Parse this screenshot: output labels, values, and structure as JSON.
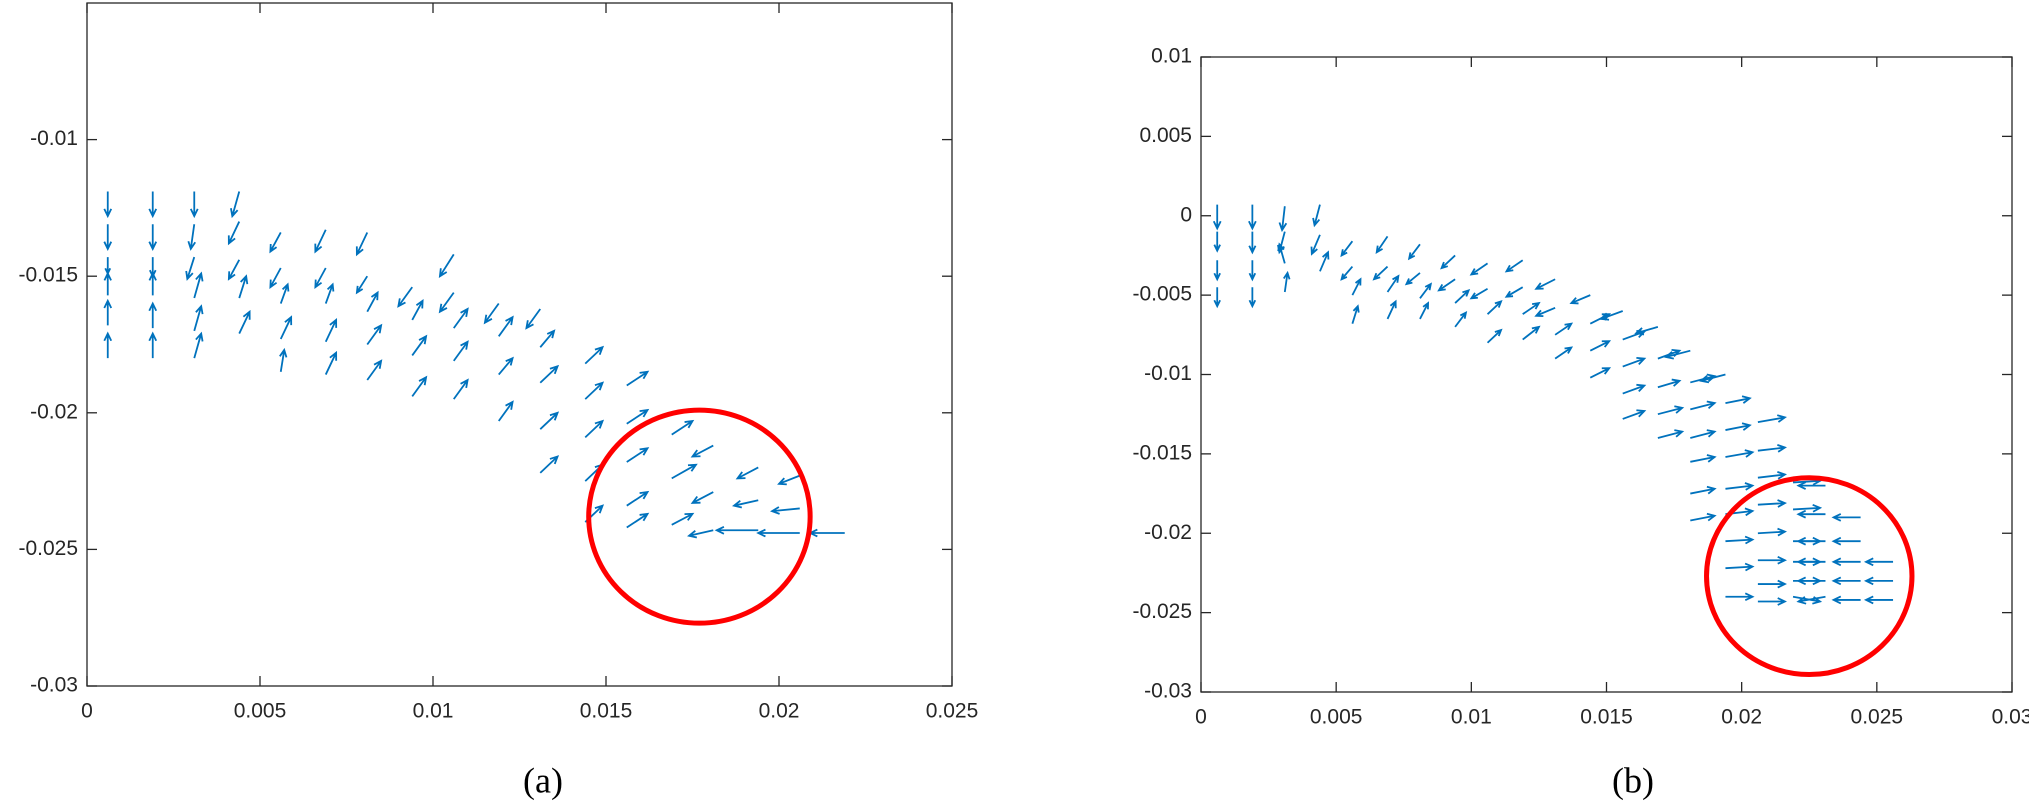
{
  "chart_data": [
    {
      "type": "quiver",
      "label": "(a)",
      "color": "#0072bd",
      "xlim": [
        0,
        0.025
      ],
      "ylim": [
        -0.03,
        -0.005
      ],
      "xticks": [
        0,
        0.005,
        0.01,
        0.015,
        0.02,
        0.025
      ],
      "yticks": [
        -0.03,
        -0.025,
        -0.02,
        -0.015,
        -0.01
      ],
      "circle": {
        "center": [
          0.0177,
          -0.0238
        ],
        "radius": [
          0.0032,
          0.0039
        ],
        "color": "#ff0000"
      },
      "arrows": [
        [
          0.0006,
          -0.0119,
          0,
          -0.0009
        ],
        [
          0.0006,
          -0.0131,
          0,
          -0.0009
        ],
        [
          0.0006,
          -0.0143,
          0,
          -0.0006
        ],
        [
          0.0006,
          -0.0157,
          0,
          0.0008
        ],
        [
          0.0006,
          -0.0168,
          0,
          0.0009
        ],
        [
          0.0006,
          -0.018,
          0,
          0.0009
        ],
        [
          0.0019,
          -0.0119,
          0,
          -0.0009
        ],
        [
          0.0019,
          -0.0131,
          0,
          -0.0009
        ],
        [
          0.0019,
          -0.0143,
          0,
          -0.0007
        ],
        [
          0.0019,
          -0.0157,
          0,
          0.0008
        ],
        [
          0.0019,
          -0.0169,
          0,
          0.0009
        ],
        [
          0.0019,
          -0.018,
          0,
          0.0009
        ],
        [
          0.0031,
          -0.0119,
          0,
          -0.0009
        ],
        [
          0.0031,
          -0.0131,
          -0.0001,
          -0.0009
        ],
        [
          0.0031,
          -0.0143,
          -0.0002,
          -0.0008
        ],
        [
          0.0031,
          -0.0158,
          0.0002,
          0.0009
        ],
        [
          0.0031,
          -0.017,
          0.0002,
          0.0009
        ],
        [
          0.0031,
          -0.018,
          0.0002,
          0.0009
        ],
        [
          0.0044,
          -0.0119,
          -0.0002,
          -0.0009
        ],
        [
          0.0044,
          -0.013,
          -0.0003,
          -0.0008
        ],
        [
          0.0044,
          -0.0144,
          -0.0003,
          -0.0007
        ],
        [
          0.0044,
          -0.0158,
          0.0002,
          0.0008
        ],
        [
          0.0044,
          -0.0171,
          0.0003,
          0.0008
        ],
        [
          0.0056,
          -0.0134,
          -0.0003,
          -0.0007
        ],
        [
          0.0056,
          -0.0147,
          -0.0003,
          -0.0007
        ],
        [
          0.0056,
          -0.016,
          0.0002,
          0.0007
        ],
        [
          0.0056,
          -0.0173,
          0.0003,
          0.0008
        ],
        [
          0.0056,
          -0.0185,
          0.0001,
          0.0008
        ],
        [
          0.0069,
          -0.0133,
          -0.0003,
          -0.0008
        ],
        [
          0.0069,
          -0.0147,
          -0.0003,
          -0.0007
        ],
        [
          0.0069,
          -0.016,
          0.0002,
          0.0007
        ],
        [
          0.0069,
          -0.0174,
          0.0003,
          0.0008
        ],
        [
          0.0069,
          -0.0186,
          0.0003,
          0.0008
        ],
        [
          0.0081,
          -0.0134,
          -0.0003,
          -0.0008
        ],
        [
          0.0081,
          -0.015,
          -0.0003,
          -0.0006
        ],
        [
          0.0081,
          -0.0163,
          0.0003,
          0.0007
        ],
        [
          0.0081,
          -0.0175,
          0.0004,
          0.0007
        ],
        [
          0.0081,
          -0.0188,
          0.0004,
          0.0007
        ],
        [
          0.0094,
          -0.0154,
          -0.0004,
          -0.0007
        ],
        [
          0.0094,
          -0.0166,
          0.0003,
          0.0007
        ],
        [
          0.0094,
          -0.0179,
          0.0004,
          0.0007
        ],
        [
          0.0094,
          -0.0194,
          0.0004,
          0.0007
        ],
        [
          0.0106,
          -0.0142,
          -0.0004,
          -0.0008
        ],
        [
          0.0106,
          -0.0156,
          -0.0004,
          -0.0007
        ],
        [
          0.0106,
          -0.0169,
          0.0004,
          0.0007
        ],
        [
          0.0106,
          -0.0181,
          0.0004,
          0.0007
        ],
        [
          0.0106,
          -0.0195,
          0.0004,
          0.0007
        ],
        [
          0.0119,
          -0.016,
          -0.0004,
          -0.0007
        ],
        [
          0.0119,
          -0.0172,
          0.0004,
          0.0007
        ],
        [
          0.0119,
          -0.0186,
          0.0004,
          0.0006
        ],
        [
          0.0119,
          -0.0203,
          0.0004,
          0.0007
        ],
        [
          0.0131,
          -0.0162,
          -0.0004,
          -0.0007
        ],
        [
          0.0131,
          -0.0176,
          0.0004,
          0.0006
        ],
        [
          0.0131,
          -0.0189,
          0.0005,
          0.0006
        ],
        [
          0.0131,
          -0.0206,
          0.0005,
          0.0006
        ],
        [
          0.0131,
          -0.0222,
          0.0005,
          0.0006
        ],
        [
          0.0144,
          -0.0182,
          0.0005,
          0.0006
        ],
        [
          0.0144,
          -0.0195,
          0.0005,
          0.0006
        ],
        [
          0.0144,
          -0.0209,
          0.0005,
          0.0006
        ],
        [
          0.0144,
          -0.0225,
          0.0005,
          0.0006
        ],
        [
          0.0144,
          -0.024,
          0.0005,
          0.0006
        ],
        [
          0.0156,
          -0.019,
          0.0006,
          0.0005
        ],
        [
          0.0156,
          -0.0204,
          0.0006,
          0.0005
        ],
        [
          0.0156,
          -0.0218,
          0.0006,
          0.0005
        ],
        [
          0.0156,
          -0.0234,
          0.0006,
          0.0005
        ],
        [
          0.0156,
          -0.0242,
          0.0006,
          0.0005
        ],
        [
          0.0169,
          -0.0208,
          0.0006,
          0.0005
        ],
        [
          0.0169,
          -0.0224,
          0.0007,
          0.0005
        ],
        [
          0.0169,
          -0.0241,
          0.0006,
          0.0004
        ],
        [
          0.0181,
          -0.0212,
          -0.0006,
          -0.0004
        ],
        [
          0.0181,
          -0.0229,
          -0.0006,
          -0.0004
        ],
        [
          0.0181,
          -0.0243,
          -0.0007,
          -0.0002
        ],
        [
          0.0194,
          -0.022,
          -0.0006,
          -0.0004
        ],
        [
          0.0194,
          -0.0232,
          -0.0007,
          -0.0002
        ],
        [
          0.0194,
          -0.0243,
          -0.0012,
          0
        ],
        [
          0.0206,
          -0.0223,
          -0.0006,
          -0.0003
        ],
        [
          0.0206,
          -0.0235,
          -0.0008,
          -0.0001
        ],
        [
          0.0206,
          -0.0244,
          -0.0012,
          0
        ],
        [
          0.0219,
          -0.0244,
          -0.001,
          0
        ]
      ]
    },
    {
      "type": "quiver",
      "label": "(b)",
      "color": "#0072bd",
      "xlim": [
        0,
        0.03
      ],
      "ylim": [
        -0.03,
        0.01
      ],
      "xticks": [
        0,
        0.005,
        0.01,
        0.015,
        0.02,
        0.025,
        0.03
      ],
      "yticks": [
        -0.03,
        -0.025,
        -0.02,
        -0.015,
        -0.01,
        -0.005,
        0,
        0.005,
        0.01
      ],
      "circle": {
        "center": [
          0.0225,
          -0.0227
        ],
        "radius": [
          0.0038,
          0.0062
        ],
        "color": "#ff0000"
      },
      "arrows": [
        [
          0.0006,
          0.0007,
          0,
          -0.0015
        ],
        [
          0.0006,
          -0.001,
          0,
          -0.0012
        ],
        [
          0.0006,
          -0.0028,
          0,
          -0.0012
        ],
        [
          0.0006,
          -0.0045,
          0,
          -0.0012
        ],
        [
          0.0019,
          0.0007,
          0,
          -0.0015
        ],
        [
          0.0019,
          -0.001,
          0,
          -0.0013
        ],
        [
          0.0019,
          -0.0028,
          0,
          -0.0012
        ],
        [
          0.0019,
          -0.0045,
          0,
          -0.0012
        ],
        [
          0.0031,
          0.0006,
          -0.0001,
          -0.0015
        ],
        [
          0.0031,
          -0.001,
          -0.0002,
          -0.0013
        ],
        [
          0.0031,
          -0.003,
          -0.0002,
          0.0012
        ],
        [
          0.0031,
          -0.0048,
          0.0001,
          0.0012
        ],
        [
          0.0044,
          0.0007,
          -0.0002,
          -0.0013
        ],
        [
          0.0044,
          -0.0012,
          -0.0003,
          -0.0012
        ],
        [
          0.0044,
          -0.0035,
          0.0003,
          0.0012
        ],
        [
          0.0056,
          -0.0016,
          -0.0004,
          -0.0009
        ],
        [
          0.0056,
          -0.0032,
          -0.0004,
          -0.0008
        ],
        [
          0.0056,
          -0.005,
          0.0003,
          0.001
        ],
        [
          0.0056,
          -0.0068,
          0.0002,
          0.0011
        ],
        [
          0.0069,
          -0.0013,
          -0.0004,
          -0.001
        ],
        [
          0.0069,
          -0.0032,
          -0.0005,
          -0.0008
        ],
        [
          0.0069,
          -0.0048,
          0.0004,
          0.001
        ],
        [
          0.0069,
          -0.0065,
          0.0003,
          0.0011
        ],
        [
          0.0081,
          -0.0018,
          -0.0004,
          -0.0009
        ],
        [
          0.0081,
          -0.0036,
          -0.0005,
          -0.0007
        ],
        [
          0.0081,
          -0.0052,
          0.0004,
          0.0009
        ],
        [
          0.0081,
          -0.0065,
          0.0003,
          0.001
        ],
        [
          0.0094,
          -0.0025,
          -0.0005,
          -0.0008
        ],
        [
          0.0094,
          -0.004,
          -0.0006,
          -0.0007
        ],
        [
          0.0094,
          -0.0055,
          0.0005,
          0.0008
        ],
        [
          0.0094,
          -0.007,
          0.0004,
          0.0009
        ],
        [
          0.0106,
          -0.003,
          -0.0006,
          -0.0007
        ],
        [
          0.0106,
          -0.0046,
          -0.0006,
          -0.0006
        ],
        [
          0.0106,
          -0.0062,
          0.0005,
          0.0008
        ],
        [
          0.0106,
          -0.008,
          0.0005,
          0.0008
        ],
        [
          0.0119,
          -0.0028,
          -0.0006,
          -0.0007
        ],
        [
          0.0119,
          -0.0045,
          -0.0006,
          -0.0006
        ],
        [
          0.0119,
          -0.0062,
          0.0006,
          0.0007
        ],
        [
          0.0119,
          -0.0078,
          0.0006,
          0.0008
        ],
        [
          0.0131,
          -0.004,
          -0.0007,
          -0.0006
        ],
        [
          0.0131,
          -0.0058,
          -0.0007,
          -0.0005
        ],
        [
          0.0131,
          -0.0075,
          0.0006,
          0.0007
        ],
        [
          0.0131,
          -0.009,
          0.0006,
          0.0007
        ],
        [
          0.0144,
          -0.005,
          -0.0007,
          -0.0005
        ],
        [
          0.0144,
          -0.0068,
          0.0007,
          0.0006
        ],
        [
          0.0144,
          -0.0085,
          0.0007,
          0.0006
        ],
        [
          0.0144,
          -0.0102,
          0.0007,
          0.0006
        ],
        [
          0.0156,
          -0.006,
          -0.0008,
          -0.0005
        ],
        [
          0.0156,
          -0.0078,
          0.0008,
          0.0005
        ],
        [
          0.0156,
          -0.0095,
          0.0008,
          0.0005
        ],
        [
          0.0156,
          -0.0112,
          0.0008,
          0.0005
        ],
        [
          0.0156,
          -0.0128,
          0.0008,
          0.0005
        ],
        [
          0.0169,
          -0.007,
          -0.0008,
          -0.0004
        ],
        [
          0.0169,
          -0.009,
          0.0008,
          0.0005
        ],
        [
          0.0169,
          -0.0108,
          0.0008,
          0.0004
        ],
        [
          0.0169,
          -0.0125,
          0.0009,
          0.0004
        ],
        [
          0.0169,
          -0.014,
          0.0009,
          0.0004
        ],
        [
          0.0181,
          -0.0085,
          -0.0009,
          -0.0004
        ],
        [
          0.0181,
          -0.0105,
          0.0009,
          0.0004
        ],
        [
          0.0181,
          -0.0122,
          0.0009,
          0.0004
        ],
        [
          0.0181,
          -0.014,
          0.0009,
          0.0004
        ],
        [
          0.0181,
          -0.0155,
          0.0009,
          0.0003
        ],
        [
          0.0181,
          -0.0175,
          0.0009,
          0.0003
        ],
        [
          0.0181,
          -0.0192,
          0.0009,
          0.0003
        ],
        [
          0.0194,
          -0.01,
          -0.0009,
          -0.0004
        ],
        [
          0.0194,
          -0.0118,
          0.0009,
          0.0003
        ],
        [
          0.0194,
          -0.0135,
          0.0009,
          0.0003
        ],
        [
          0.0194,
          -0.0152,
          0.001,
          0.0003
        ],
        [
          0.0194,
          -0.0172,
          0.001,
          0.0002
        ],
        [
          0.0194,
          -0.0188,
          0.001,
          0.0002
        ],
        [
          0.0194,
          -0.0205,
          0.001,
          0.0001
        ],
        [
          0.0194,
          -0.0222,
          0.001,
          0.0001
        ],
        [
          0.0194,
          -0.024,
          0.001,
          0
        ],
        [
          0.0206,
          -0.013,
          0.001,
          0.0003
        ],
        [
          0.0206,
          -0.0148,
          0.001,
          0.0002
        ],
        [
          0.0206,
          -0.0165,
          0.001,
          0.0002
        ],
        [
          0.0206,
          -0.0182,
          0.001,
          0.0001
        ],
        [
          0.0206,
          -0.02,
          0.001,
          0.0001
        ],
        [
          0.0206,
          -0.0217,
          0.001,
          0
        ],
        [
          0.0206,
          -0.0232,
          0.001,
          0
        ],
        [
          0.0206,
          -0.0243,
          0.001,
          0
        ],
        [
          0.0219,
          -0.0168,
          0.001,
          0.0001
        ],
        [
          0.0219,
          -0.0185,
          0.001,
          0.0001
        ],
        [
          0.0219,
          -0.0205,
          0.001,
          0
        ],
        [
          0.0219,
          -0.0218,
          0.001,
          0
        ],
        [
          0.0219,
          -0.023,
          0.001,
          0
        ],
        [
          0.0219,
          -0.024,
          0.001,
          -0.0003
        ],
        [
          0.0231,
          -0.017,
          -0.001,
          0
        ],
        [
          0.0231,
          -0.0188,
          -0.001,
          0
        ],
        [
          0.0231,
          -0.0205,
          -0.001,
          0
        ],
        [
          0.0231,
          -0.0218,
          -0.001,
          0
        ],
        [
          0.0231,
          -0.023,
          -0.001,
          0
        ],
        [
          0.0231,
          -0.024,
          -0.001,
          -0.0003
        ],
        [
          0.0244,
          -0.019,
          -0.001,
          0
        ],
        [
          0.0244,
          -0.0205,
          -0.001,
          0
        ],
        [
          0.0244,
          -0.0218,
          -0.001,
          0
        ],
        [
          0.0244,
          -0.023,
          -0.001,
          0
        ],
        [
          0.0244,
          -0.0242,
          -0.001,
          0
        ],
        [
          0.0256,
          -0.0218,
          -0.001,
          0
        ],
        [
          0.0256,
          -0.023,
          -0.001,
          0
        ],
        [
          0.0256,
          -0.0242,
          -0.001,
          0
        ]
      ]
    }
  ]
}
